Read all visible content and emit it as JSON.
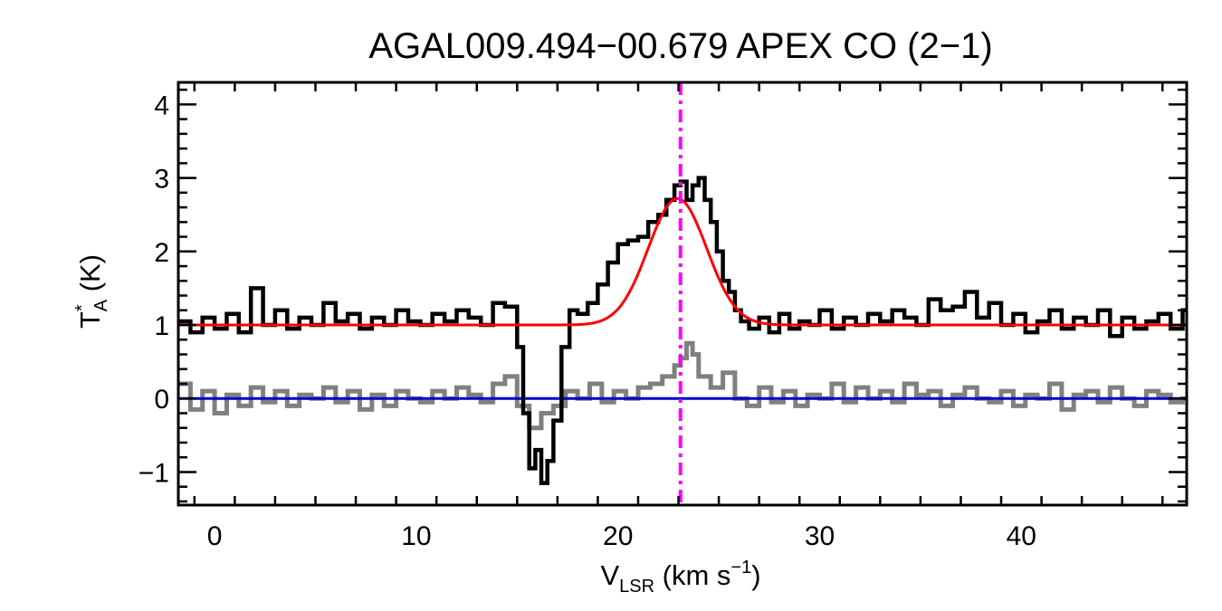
{
  "chart_data": {
    "type": "line",
    "title": "AGAL009.494−00.679  APEX CO (2−1)",
    "xlabel": {
      "main": "V",
      "sub": "LSR",
      "unit_pre": " (km s",
      "unit_sup": "−1",
      "unit_post": ")"
    },
    "ylabel": {
      "main": "T",
      "sup": "*",
      "sub": "A",
      "unit": " (K)"
    },
    "xlim": [
      -1.8,
      48.2
    ],
    "ylim": [
      -1.45,
      4.3
    ],
    "x_ticks": [
      0,
      10,
      20,
      30,
      40
    ],
    "x_tick_labels": [
      "0",
      "10",
      "20",
      "30",
      "40"
    ],
    "y_ticks": [
      -1,
      0,
      1,
      2,
      3,
      4
    ],
    "y_tick_labels": [
      "−1",
      "0",
      "1",
      "2",
      "3",
      "4"
    ],
    "colors": {
      "spectrum": "#000000",
      "fit": "#ff0000",
      "residual": "#808080",
      "baseline": "#0000cc",
      "vlsr_marker": "#ff00ff"
    },
    "series": [
      {
        "role": "observed-spectrum",
        "style": "histogram",
        "x": [
          -1.8,
          -1.2,
          -0.6,
          0,
          0.6,
          1.2,
          1.8,
          2.4,
          3,
          3.6,
          4.2,
          4.8,
          5.4,
          6,
          6.6,
          7.2,
          7.8,
          8.4,
          9,
          9.6,
          10.2,
          10.8,
          11.4,
          12,
          12.6,
          13.2,
          13.8,
          14.4,
          15,
          15.3,
          15.6,
          15.9,
          16.2,
          16.5,
          16.8,
          17.2,
          17.6,
          18,
          18.5,
          19,
          19.5,
          20,
          20.5,
          21,
          21.5,
          22,
          22.4,
          22.8,
          23.1,
          23.4,
          23.7,
          24,
          24.3,
          24.6,
          24.9,
          25.2,
          25.5,
          25.8,
          26.1,
          26.5,
          27,
          27.5,
          28,
          28.5,
          29,
          29.5,
          30,
          30.6,
          31.2,
          31.8,
          32.4,
          33,
          33.6,
          34.2,
          34.8,
          35.4,
          36,
          36.6,
          37.2,
          37.8,
          38.4,
          39,
          39.6,
          40.2,
          40.8,
          41.4,
          42,
          42.6,
          43.2,
          43.8,
          44.4,
          45,
          45.6,
          46.2,
          46.8,
          47.4,
          48
        ],
        "y": [
          1.05,
          0.9,
          1.1,
          0.95,
          1.15,
          0.9,
          1.5,
          1.0,
          1.2,
          0.95,
          1.1,
          1.0,
          1.3,
          1.05,
          1.15,
          0.95,
          1.1,
          1.0,
          1.2,
          1.05,
          1.0,
          1.15,
          1.05,
          1.2,
          1.1,
          1.0,
          1.3,
          1.25,
          0.7,
          -0.2,
          -0.95,
          -0.7,
          -1.15,
          -0.85,
          -0.3,
          0.7,
          1.2,
          1.15,
          1.3,
          1.55,
          1.85,
          2.1,
          2.15,
          2.2,
          2.4,
          2.5,
          2.7,
          2.9,
          2.95,
          2.7,
          2.9,
          3.0,
          2.7,
          2.4,
          2.0,
          1.6,
          1.45,
          1.2,
          1.05,
          0.95,
          1.1,
          0.9,
          1.15,
          0.95,
          1.05,
          1.0,
          1.2,
          0.95,
          1.1,
          1.0,
          1.15,
          1.05,
          1.2,
          1.1,
          1.0,
          1.35,
          1.2,
          1.25,
          1.45,
          1.1,
          1.3,
          1.0,
          1.15,
          0.9,
          1.05,
          1.2,
          0.95,
          1.1,
          1.0,
          1.2,
          0.85,
          1.1,
          0.95,
          1.05,
          1.15,
          0.95,
          1.2
        ]
      },
      {
        "role": "gaussian-fit",
        "style": "gaussian",
        "baseline": 1.0,
        "amplitude": 1.72,
        "center": 22.95,
        "sigma": 1.45
      },
      {
        "role": "residual",
        "style": "histogram",
        "x": [
          -1.8,
          -1.2,
          -0.6,
          0,
          0.6,
          1.2,
          1.8,
          2.4,
          3,
          3.6,
          4.2,
          4.8,
          5.4,
          6,
          6.6,
          7.2,
          7.8,
          8.4,
          9,
          9.6,
          10.2,
          10.8,
          11.4,
          12,
          12.6,
          13.2,
          13.8,
          14.4,
          15,
          15.6,
          16.2,
          16.8,
          17.4,
          18,
          18.6,
          19.2,
          19.8,
          20.4,
          21,
          21.6,
          22.2,
          22.8,
          23.1,
          23.4,
          23.7,
          24,
          24.6,
          25.2,
          25.8,
          26.4,
          27,
          27.6,
          28.2,
          28.8,
          29.4,
          30,
          30.6,
          31.2,
          31.8,
          32.4,
          33,
          33.6,
          34.2,
          34.8,
          35.4,
          36,
          36.6,
          37.2,
          37.8,
          38.4,
          39,
          39.6,
          40.2,
          40.8,
          41.4,
          42,
          42.6,
          43.2,
          43.8,
          44.4,
          45,
          45.6,
          46.2,
          46.8,
          47.4,
          48
        ],
        "y": [
          0.2,
          -0.15,
          0.1,
          -0.2,
          0.05,
          -0.1,
          0.15,
          -0.05,
          0.1,
          -0.1,
          0.05,
          0.0,
          0.15,
          -0.05,
          0.1,
          -0.15,
          0.05,
          -0.1,
          0.1,
          0.0,
          -0.05,
          0.1,
          0.0,
          0.15,
          0.05,
          -0.05,
          0.2,
          0.3,
          -0.1,
          -0.4,
          -0.2,
          -0.1,
          0.1,
          0.0,
          0.2,
          -0.05,
          0.1,
          0.0,
          0.15,
          0.2,
          0.3,
          0.45,
          0.55,
          0.75,
          0.6,
          0.3,
          0.15,
          0.35,
          0.0,
          -0.1,
          0.15,
          -0.05,
          0.1,
          -0.1,
          0.05,
          0.0,
          0.2,
          -0.05,
          0.15,
          0.0,
          0.1,
          -0.05,
          0.2,
          0.05,
          0.1,
          -0.1,
          0.05,
          0.15,
          0.0,
          -0.05,
          0.1,
          -0.1,
          0.05,
          0.0,
          0.2,
          -0.15,
          0.05,
          0.1,
          -0.05,
          0.15,
          0.0,
          -0.1,
          0.1,
          0.05,
          -0.05,
          0.0
        ]
      },
      {
        "role": "baseline",
        "style": "hline",
        "y": 0.0
      },
      {
        "role": "vlsr-marker",
        "style": "vline-dashdot",
        "x": 23.1
      }
    ]
  }
}
